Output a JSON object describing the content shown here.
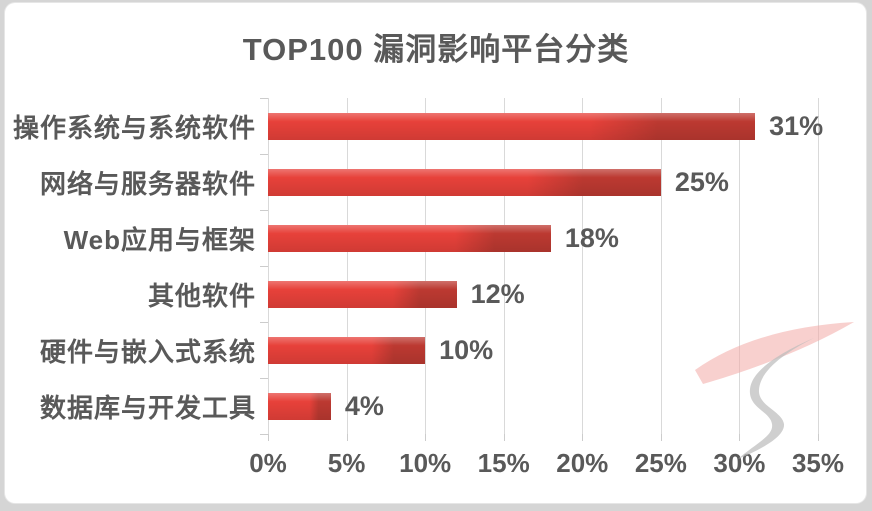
{
  "chart": {
    "title": "TOP100 漏洞影响平台分类"
  },
  "chart_data": {
    "type": "bar",
    "orientation": "horizontal",
    "title": "TOP100 漏洞影响平台分类",
    "categories": [
      "操作系统与系统软件",
      "网络与服务器软件",
      "Web应用与框架",
      "其他软件",
      "硬件与嵌入式系统",
      "数据库与开发工具"
    ],
    "values": [
      31,
      25,
      18,
      12,
      10,
      4
    ],
    "value_labels": [
      "31%",
      "25%",
      "18%",
      "12%",
      "10%",
      "4%"
    ],
    "x_tick_labels": [
      "0%",
      "5%",
      "10%",
      "15%",
      "20%",
      "25%",
      "30%",
      "35%"
    ],
    "x_tick_values": [
      0,
      5,
      10,
      15,
      20,
      25,
      30,
      35
    ],
    "xlim": [
      0,
      35
    ],
    "xlabel": "",
    "ylabel": "",
    "grid": true,
    "legend": false,
    "colors": {
      "bar_main": "#e7413a",
      "bar_tip": "#bc3931",
      "text": "#595959",
      "gridline": "#d9d9d9",
      "card_background": "#ffffff",
      "page_background": "#d5d5d5",
      "watermark_pink": "#f2aaa6",
      "watermark_gray": "#bcbcbc"
    }
  },
  "watermark": {
    "name": "brush-stroke-s-logo"
  }
}
